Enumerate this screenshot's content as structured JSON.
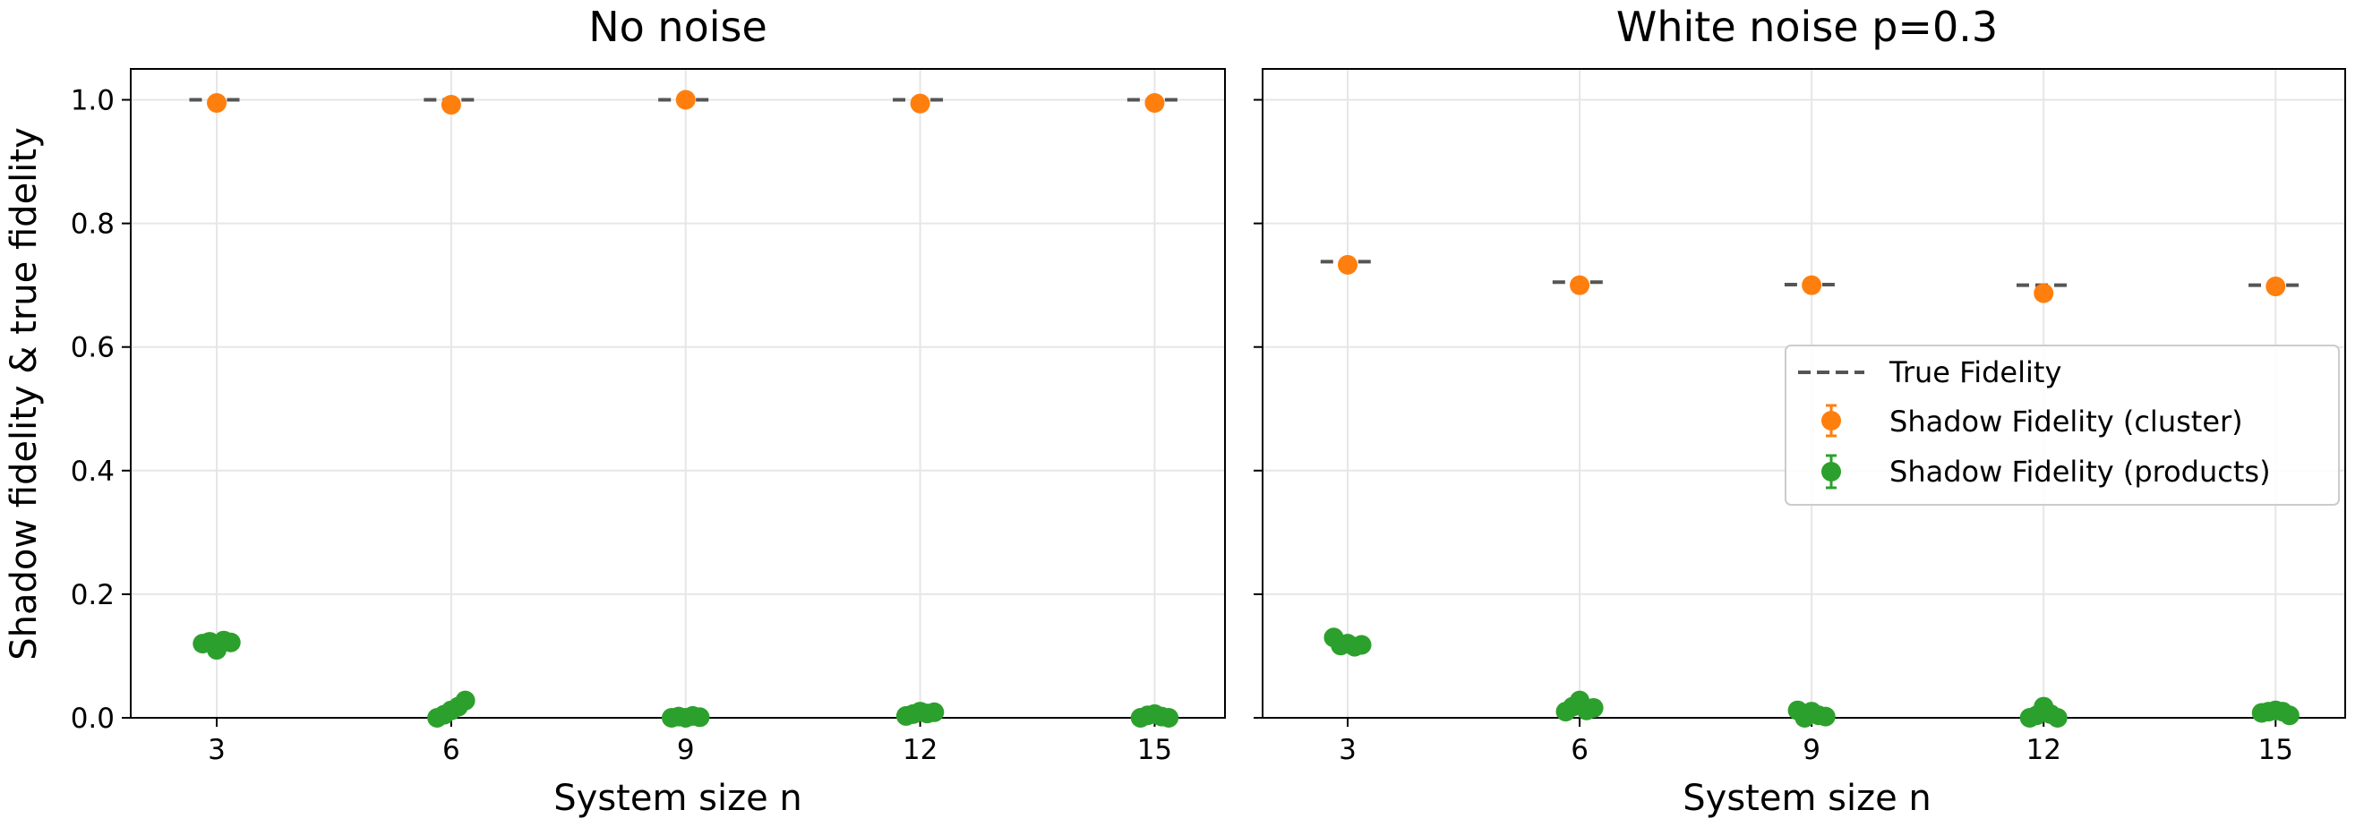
{
  "chart_data": [
    {
      "type": "scatter",
      "title": "No noise",
      "xlabel": "System size n",
      "ylabel": "Shadow fidelity & true fidelity",
      "xticks": [
        3,
        6,
        9,
        12,
        15
      ],
      "yticks": [
        "0.0",
        "0.2",
        "0.4",
        "0.6",
        "0.8",
        "1.0"
      ],
      "xlim": [
        1.9,
        15.9
      ],
      "ylim": [
        0,
        1.05
      ],
      "grid": true,
      "legend": false,
      "true_fidelity": [
        {
          "x": 3,
          "y": 1.0
        },
        {
          "x": 6,
          "y": 1.0
        },
        {
          "x": 9,
          "y": 1.0
        },
        {
          "x": 12,
          "y": 1.0
        },
        {
          "x": 15,
          "y": 1.0
        }
      ],
      "shadow_cluster": [
        {
          "x": 3,
          "y": 0.995
        },
        {
          "x": 6,
          "y": 0.992
        },
        {
          "x": 9,
          "y": 1.0
        },
        {
          "x": 12,
          "y": 0.994
        },
        {
          "x": 15,
          "y": 0.995
        }
      ],
      "shadow_products": [
        {
          "x": 2.82,
          "y": 0.12
        },
        {
          "x": 2.91,
          "y": 0.123
        },
        {
          "x": 3.0,
          "y": 0.11
        },
        {
          "x": 3.09,
          "y": 0.125
        },
        {
          "x": 3.18,
          "y": 0.122
        },
        {
          "x": 5.82,
          "y": 0.0
        },
        {
          "x": 5.91,
          "y": 0.005
        },
        {
          "x": 6.0,
          "y": 0.012
        },
        {
          "x": 6.09,
          "y": 0.018
        },
        {
          "x": 6.18,
          "y": 0.028
        },
        {
          "x": 8.82,
          "y": 0.0
        },
        {
          "x": 8.91,
          "y": 0.002
        },
        {
          "x": 9.0,
          "y": 0.0
        },
        {
          "x": 9.09,
          "y": 0.003
        },
        {
          "x": 9.18,
          "y": 0.001
        },
        {
          "x": 11.82,
          "y": 0.003
        },
        {
          "x": 11.91,
          "y": 0.006
        },
        {
          "x": 12.0,
          "y": 0.01
        },
        {
          "x": 12.09,
          "y": 0.007
        },
        {
          "x": 12.18,
          "y": 0.009
        },
        {
          "x": 14.82,
          "y": 0.0
        },
        {
          "x": 14.91,
          "y": 0.004
        },
        {
          "x": 15.0,
          "y": 0.006
        },
        {
          "x": 15.09,
          "y": 0.002
        },
        {
          "x": 15.18,
          "y": 0.0
        }
      ]
    },
    {
      "type": "scatter",
      "title": "White noise p=0.3",
      "xlabel": "System size n",
      "xticks": [
        3,
        6,
        9,
        12,
        15
      ],
      "xlim": [
        1.9,
        15.9
      ],
      "ylim": [
        0,
        1.05
      ],
      "grid": true,
      "legend": true,
      "legend_position": "center-right",
      "legend_entries": [
        "True Fidelity",
        "Shadow Fidelity (cluster)",
        "Shadow Fidelity (products)"
      ],
      "true_fidelity": [
        {
          "x": 3,
          "y": 0.738
        },
        {
          "x": 6,
          "y": 0.705
        },
        {
          "x": 9,
          "y": 0.701
        },
        {
          "x": 12,
          "y": 0.7
        },
        {
          "x": 15,
          "y": 0.7
        }
      ],
      "shadow_cluster": [
        {
          "x": 3,
          "y": 0.733
        },
        {
          "x": 6,
          "y": 0.7
        },
        {
          "x": 9,
          "y": 0.7
        },
        {
          "x": 12,
          "y": 0.687
        },
        {
          "x": 15,
          "y": 0.698
        }
      ],
      "shadow_products": [
        {
          "x": 2.82,
          "y": 0.13
        },
        {
          "x": 2.91,
          "y": 0.117
        },
        {
          "x": 3.0,
          "y": 0.12
        },
        {
          "x": 3.09,
          "y": 0.115
        },
        {
          "x": 3.18,
          "y": 0.118
        },
        {
          "x": 5.82,
          "y": 0.01
        },
        {
          "x": 5.91,
          "y": 0.018
        },
        {
          "x": 6.0,
          "y": 0.028
        },
        {
          "x": 6.09,
          "y": 0.012
        },
        {
          "x": 6.18,
          "y": 0.016
        },
        {
          "x": 8.82,
          "y": 0.012
        },
        {
          "x": 8.91,
          "y": 0.0
        },
        {
          "x": 9.0,
          "y": 0.01
        },
        {
          "x": 9.09,
          "y": 0.004
        },
        {
          "x": 9.18,
          "y": 0.002
        },
        {
          "x": 11.82,
          "y": 0.0
        },
        {
          "x": 11.91,
          "y": 0.004
        },
        {
          "x": 12.0,
          "y": 0.018
        },
        {
          "x": 12.09,
          "y": 0.006
        },
        {
          "x": 12.18,
          "y": 0.0
        },
        {
          "x": 14.82,
          "y": 0.008
        },
        {
          "x": 14.91,
          "y": 0.01
        },
        {
          "x": 15.0,
          "y": 0.012
        },
        {
          "x": 15.09,
          "y": 0.01
        },
        {
          "x": 15.18,
          "y": 0.004
        }
      ]
    }
  ],
  "colors": {
    "true_fidelity": "#555555",
    "cluster": "#ff7f0e",
    "products": "#2ca02c",
    "grid": "#e6e6e6"
  }
}
